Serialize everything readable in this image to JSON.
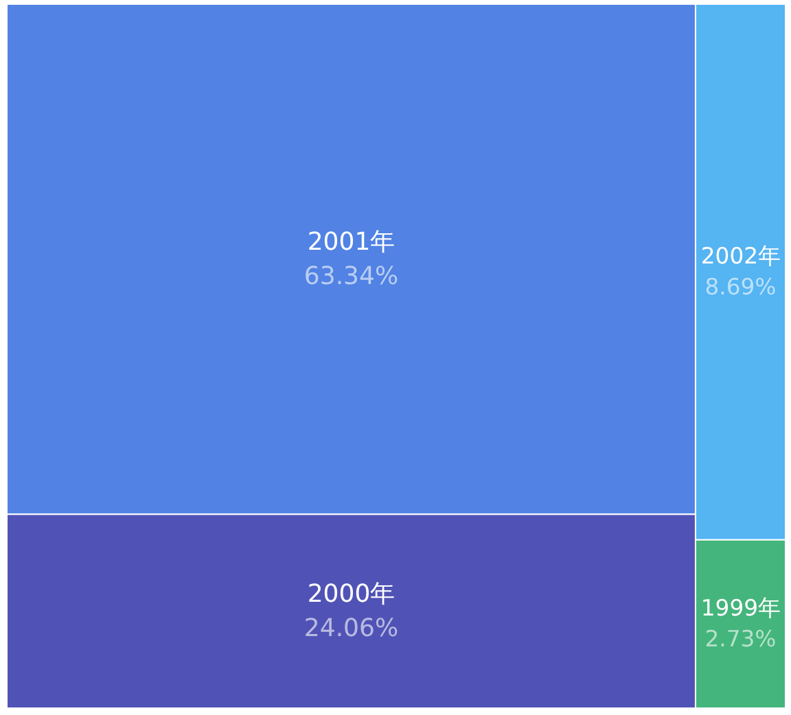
{
  "chart_data": {
    "type": "other",
    "categories": [
      "2001年",
      "2000年",
      "2002年",
      "1999年"
    ],
    "values": [
      63.34,
      24.06,
      8.69,
      2.73
    ],
    "value_labels": [
      "63.34%",
      "24.06%",
      "8.69%",
      "2.73%"
    ],
    "colors": [
      "#5182e4",
      "#5053b5",
      "#55b4f2",
      "#44b57c"
    ]
  }
}
